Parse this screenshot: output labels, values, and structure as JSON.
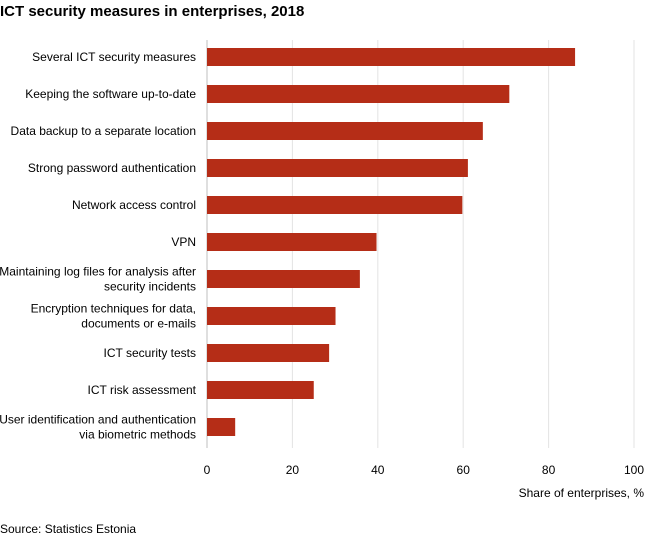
{
  "chart_data": {
    "type": "bar",
    "orientation": "horizontal",
    "title": "ICT security measures in enterprises, 2018",
    "xlabel": "Share of enterprises, %",
    "ylabel": "",
    "xlim": [
      0,
      100
    ],
    "x_ticks": [
      0,
      20,
      40,
      60,
      80,
      100
    ],
    "grid": true,
    "bar_color": "#b52d17",
    "categories": [
      [
        "Several ICT security measures"
      ],
      [
        "Keeping the software up-to-date"
      ],
      [
        "Data backup to a separate location"
      ],
      [
        "Strong password authentication"
      ],
      [
        "Network access control"
      ],
      [
        "VPN"
      ],
      [
        "Maintaining log files for analysis after",
        "security incidents"
      ],
      [
        "Encryption techniques for data,",
        "documents or e-mails"
      ],
      [
        "ICT security tests"
      ],
      [
        "ICT risk assessment"
      ],
      [
        "User identification and authentication",
        "via biometric methods"
      ]
    ],
    "values": [
      86.2,
      70.8,
      64.6,
      61.1,
      59.8,
      39.7,
      35.8,
      30.1,
      28.6,
      25.0,
      6.6
    ]
  },
  "source": "Source: Statistics Estonia"
}
